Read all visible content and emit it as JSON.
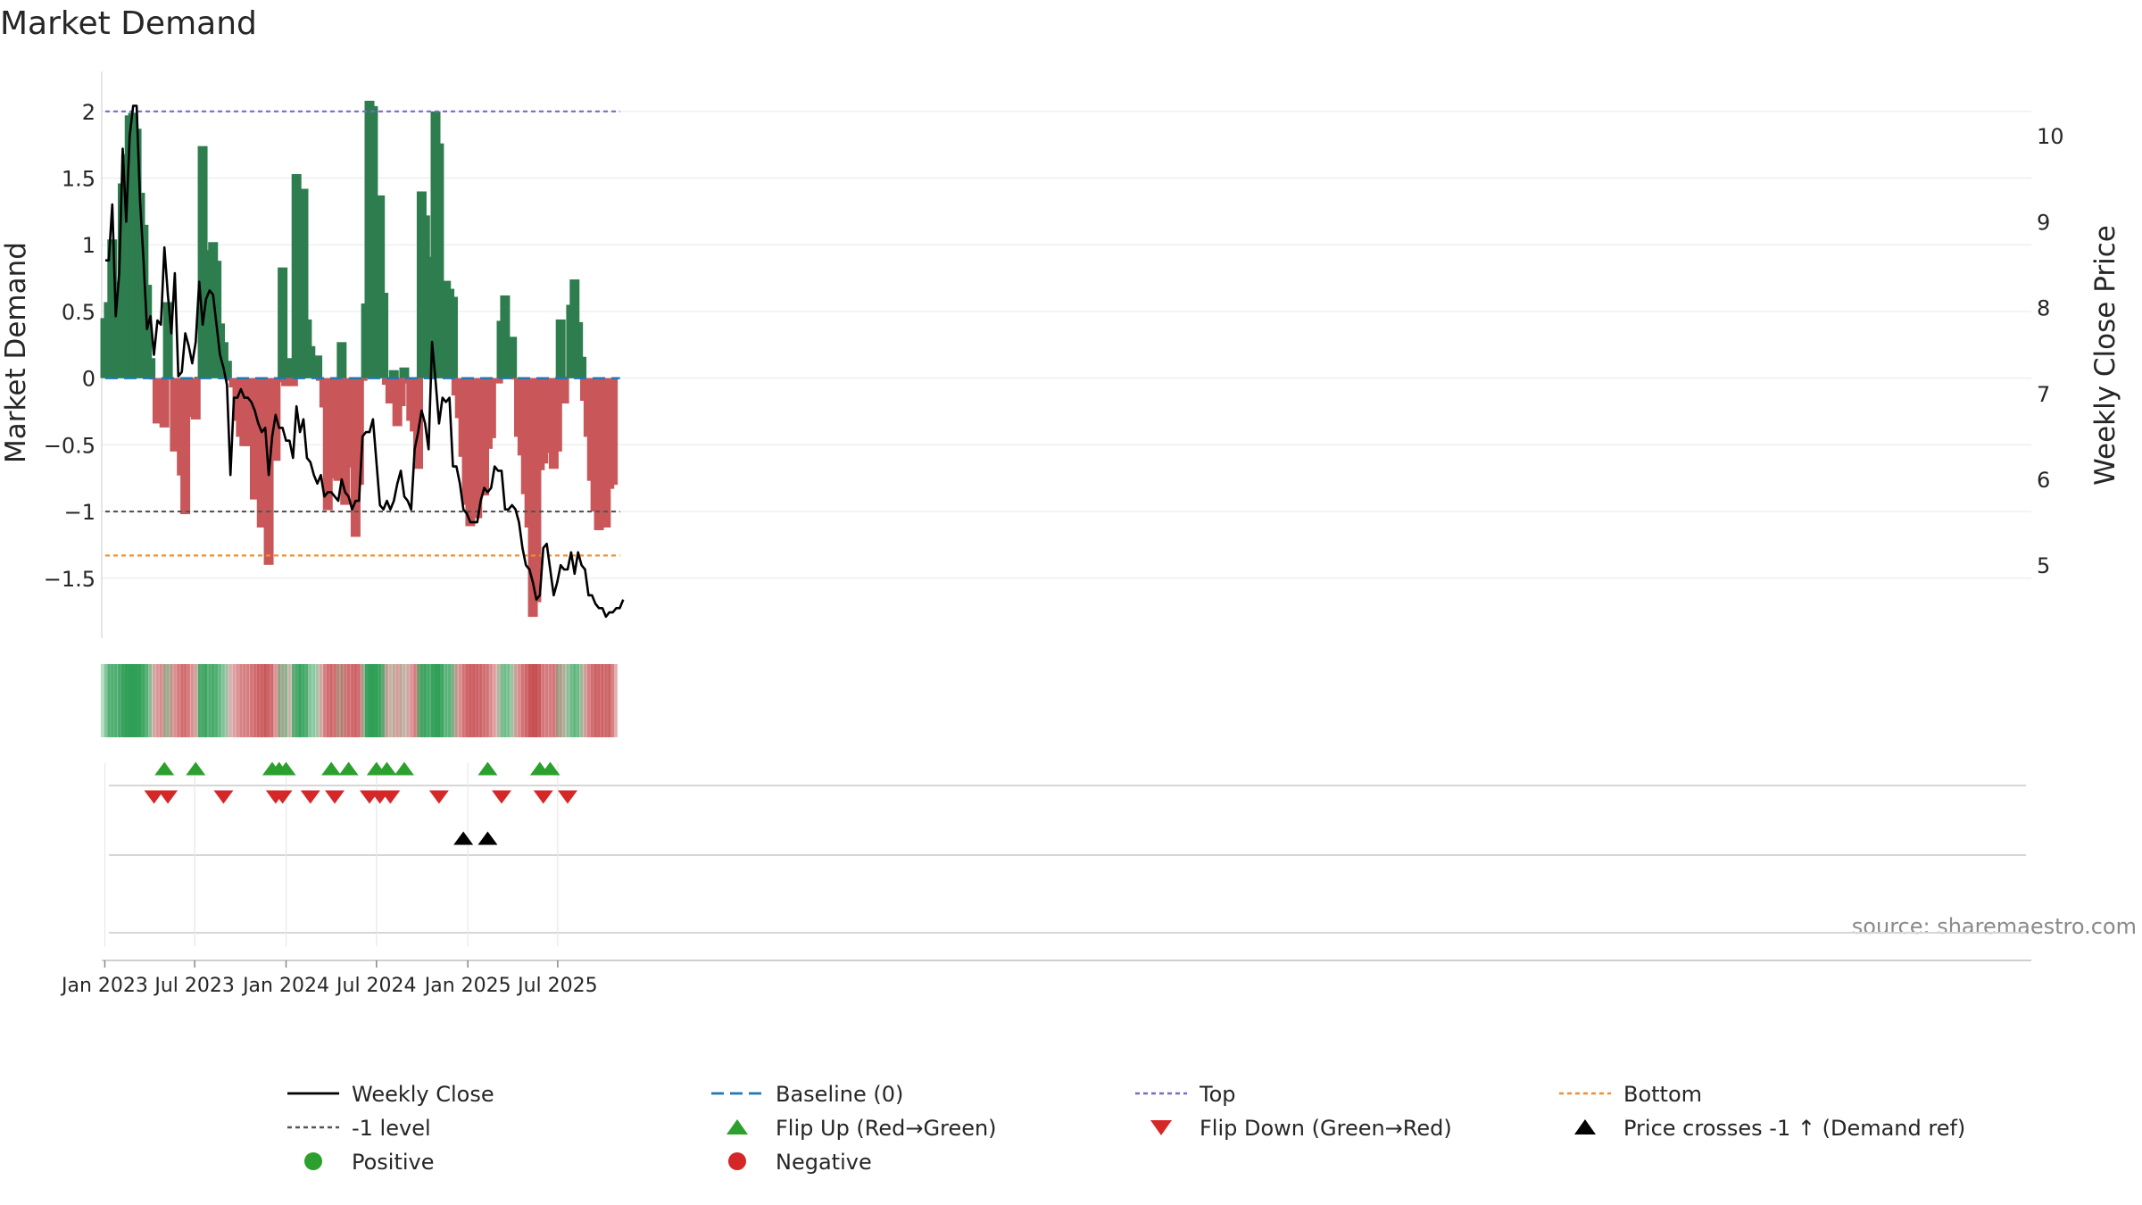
{
  "chart_data": {
    "type": "bar+line",
    "title": "Market Demand",
    "ylabel_left": "Market Demand",
    "ylabel_right": "Weekly Close Price",
    "source": "source: sharemaestro.com",
    "start_date": "2023-01-02",
    "week_step_days": 7,
    "ylim_left": [
      -1.95,
      2.3
    ],
    "ylim_right": [
      4.15,
      10.75
    ],
    "yticks_left": [
      2,
      1.5,
      1,
      0.5,
      0,
      -0.5,
      -1,
      -1.5
    ],
    "yticks_left_labels": [
      "2",
      "1.5",
      "1",
      "0.5",
      "0",
      "−0.5",
      "−1",
      "−1.5"
    ],
    "yticks_right": [
      10,
      9,
      8,
      7,
      6,
      5
    ],
    "xticks": [
      {
        "date": "2023-01-01",
        "label": "Jan 2023"
      },
      {
        "date": "2023-07-01",
        "label": "Jul 2023"
      },
      {
        "date": "2024-01-01",
        "label": "Jan 2024"
      },
      {
        "date": "2024-07-01",
        "label": "Jul 2024"
      },
      {
        "date": "2025-01-01",
        "label": "Jan 2025"
      },
      {
        "date": "2025-07-01",
        "label": "Jul 2025"
      }
    ],
    "reference_lines": {
      "top": 2.0,
      "minus_one_level": -1.0,
      "bottom": -1.33,
      "baseline": 0
    },
    "demand": [
      0.45,
      0.57,
      1.04,
      0.65,
      0.72,
      1.46,
      1.68,
      1.97,
      1.99,
      1.87,
      1.39,
      1.15,
      0.7,
      0.15,
      -0.01,
      -0.34,
      -0.3,
      -0.37,
      0.57,
      -0.01,
      -0.55,
      -0.31,
      -0.73,
      -1.02,
      -0.29,
      -0.27,
      -0.31,
      0.01,
      1.74,
      0.49,
      0.96,
      1.02,
      0.88,
      0.41,
      0.27,
      0.13,
      -0.02,
      -0.07,
      -0.32,
      -0.44,
      -0.51,
      -0.51,
      -0.46,
      -0.91,
      -0.83,
      -1.12,
      -1.04,
      -1.4,
      -0.02,
      -0.62,
      -0.03,
      0.83,
      -0.06,
      0.15,
      -0.06,
      1.53,
      0.83,
      1.42,
      0.44,
      0.24,
      0.11,
      0.17,
      -0.02,
      -0.22,
      -0.99,
      -0.75,
      -0.75,
      -0.77,
      0.27,
      -0.95,
      -0.65,
      -0.67,
      -1.19,
      -0.8,
      -0.02,
      0.56,
      2.08,
      2.04,
      1.33,
      1.37,
      0.64,
      -0.05,
      -0.19,
      0.06,
      -0.36,
      -0.21,
      0.08,
      -0.04,
      -0.32,
      -0.4,
      -0.68,
      1.4,
      1.22,
      0.91,
      0.85,
      2.0,
      1.76,
      0.56,
      0.73,
      0.67,
      0.61,
      -0.13,
      -0.3,
      -0.59,
      -0.95,
      -1.11,
      -1.0,
      -1.05,
      -0.69,
      -0.88,
      -0.53,
      -0.45,
      -0.01,
      -0.04,
      0.43,
      0.62,
      0.17,
      0.31,
      -0.01,
      -0.44,
      -0.58,
      -0.87,
      -1.12,
      -1.79,
      -1.68,
      -0.69,
      -0.64,
      -0.44,
      -0.56,
      -0.68,
      -0.55,
      0.44,
      -0.19,
      0.01,
      0.55,
      0.74,
      0.42,
      0.16,
      -0.17,
      -0.44,
      -0.77,
      -1.0,
      -1.14,
      -0.45,
      -1.12,
      -0.83,
      -0.8
    ],
    "close": [
      8.55,
      8.55,
      9.2,
      7.9,
      8.4,
      9.85,
      9.0,
      10.0,
      10.35,
      10.35,
      9.25,
      8.55,
      7.75,
      7.9,
      7.45,
      7.85,
      7.8,
      8.7,
      8.15,
      7.7,
      8.4,
      7.2,
      7.25,
      7.7,
      7.55,
      7.35,
      7.6,
      8.3,
      7.8,
      8.1,
      8.2,
      8.15,
      7.8,
      7.45,
      7.3,
      7.1,
      6.05,
      6.95,
      6.95,
      7.05,
      6.95,
      6.95,
      6.9,
      6.8,
      6.65,
      6.55,
      6.6,
      6.05,
      6.5,
      6.75,
      6.6,
      6.6,
      6.45,
      6.45,
      6.25,
      6.85,
      6.55,
      6.7,
      6.25,
      6.2,
      6.05,
      5.95,
      6.05,
      5.8,
      5.85,
      5.85,
      5.8,
      5.75,
      6.0,
      5.85,
      5.8,
      5.65,
      5.75,
      5.75,
      6.5,
      6.55,
      6.55,
      6.7,
      6.2,
      5.7,
      5.65,
      5.75,
      5.65,
      5.75,
      5.95,
      6.1,
      5.8,
      5.75,
      5.65,
      6.35,
      6.55,
      6.8,
      6.65,
      6.35,
      7.6,
      7.15,
      6.65,
      6.95,
      6.9,
      6.95,
      6.15,
      6.15,
      5.95,
      5.65,
      5.6,
      5.5,
      5.5,
      5.5,
      5.75,
      5.9,
      5.85,
      5.9,
      6.15,
      6.1,
      6.1,
      5.65,
      5.65,
      5.7,
      5.65,
      5.5,
      5.2,
      5.0,
      4.95,
      4.8,
      4.6,
      4.65,
      5.2,
      5.25,
      4.95,
      4.65,
      4.8,
      5.0,
      4.95,
      4.95,
      5.15,
      4.9,
      5.15,
      5.0,
      4.95,
      4.65,
      4.65,
      4.55,
      4.5,
      4.5,
      4.4,
      4.45,
      4.45,
      4.5,
      4.5,
      4.6
    ],
    "flip_up_weeks": [
      17,
      26,
      48,
      50,
      52,
      65,
      70,
      78,
      81,
      86,
      110,
      125,
      128
    ],
    "flip_down_weeks": [
      14,
      18,
      34,
      49,
      51,
      59,
      66,
      76,
      79,
      82,
      96,
      114,
      126,
      133
    ],
    "price_cross_weeks": [
      103,
      110
    ],
    "legend": [
      {
        "key": "close",
        "label": "Weekly Close",
        "color": "#000000"
      },
      {
        "key": "baseline",
        "label": "Baseline (0)",
        "color": "#1f77b4"
      },
      {
        "key": "top",
        "label": "Top",
        "color": "#7b68c8"
      },
      {
        "key": "bottom",
        "label": "Bottom",
        "color": "#f28e2b"
      },
      {
        "key": "minus1",
        "label": "-1 level",
        "color": "#555555"
      },
      {
        "key": "flip_up",
        "label": "Flip Up (Red→Green)",
        "color": "#2ca02c"
      },
      {
        "key": "flip_down",
        "label": "Flip Down (Green→Red)",
        "color": "#d62728"
      },
      {
        "key": "price_cross",
        "label": "Price crosses -1 ↑ (Demand ref)",
        "color": "#000000"
      },
      {
        "key": "positive",
        "label": "Positive",
        "color": "#2ca02c"
      },
      {
        "key": "negative",
        "label": "Negative",
        "color": "#d62728"
      }
    ],
    "colors": {
      "pos_bar": "#2e7d4f",
      "neg_bar": "#c9575a",
      "close_line": "#000000",
      "baseline": "#1f77b4",
      "top": "#7b68c8",
      "minus1": "#555555",
      "bottom": "#f28e2b",
      "grid": "#ececec",
      "axis": "#cccccc"
    }
  }
}
